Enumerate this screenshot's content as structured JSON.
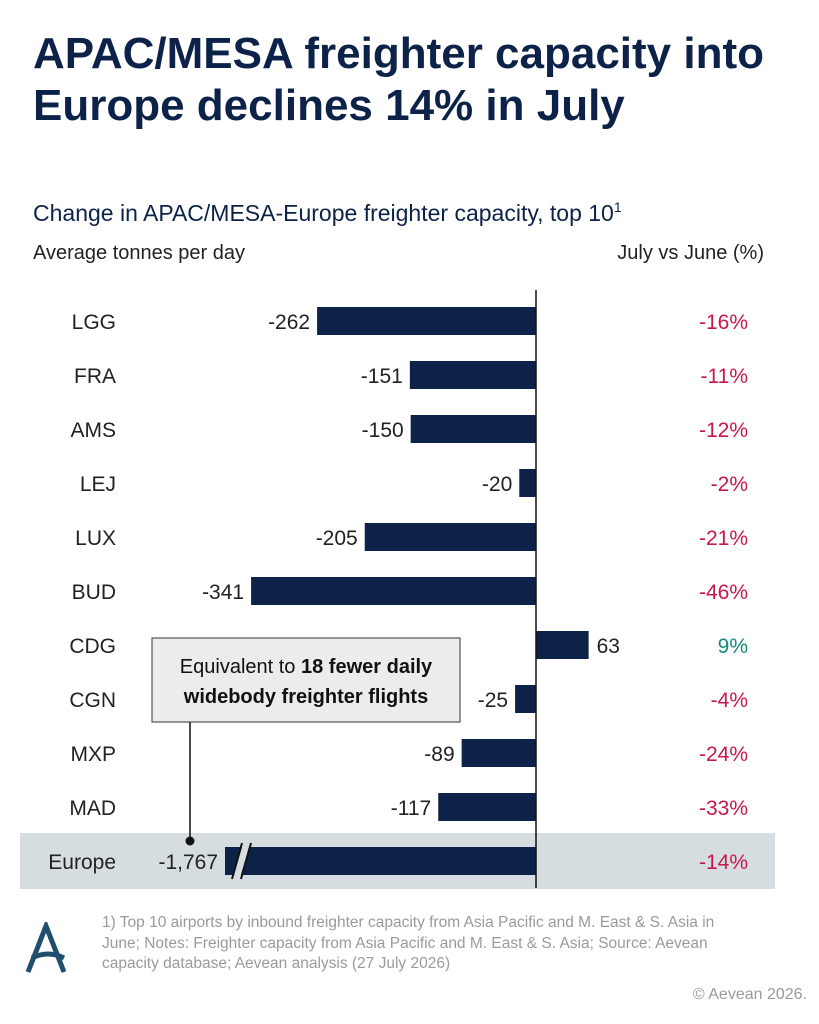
{
  "title": "APAC/MESA freighter capacity into Europe declines 14% in July",
  "subtitle": "Change in APAC/MESA-Europe freighter capacity, top 10",
  "subtitle_footnote_mark": "1",
  "left_header": "Average tonnes per day",
  "right_header": "July vs June (%)",
  "callout": {
    "line1_prefix": "Equivalent to ",
    "line1_bold": "18 fewer daily",
    "line2_bold": "widebody freighter flights"
  },
  "notes": "1) Top 10 airports by inbound freighter capacity from Asia Pacific and M. East & S. Asia in June; Notes: Freighter capacity from Asia Pacific and M. East & S. Asia; Source: Aevean capacity database; Aevean analysis (27 July 2026)",
  "copyright": "© Aevean 2026.",
  "colors": {
    "bar": "#0d2248",
    "negative": "#c8174b",
    "positive": "#138a7b",
    "highlight_band": "#d5dde0",
    "callout_bg": "#ececec"
  },
  "chart_data": {
    "type": "bar",
    "orientation": "horizontal",
    "title": "Change in APAC/MESA-Europe freighter capacity, top 10",
    "xlabel": "Average tonnes per day",
    "categories": [
      "LGG",
      "FRA",
      "AMS",
      "LEJ",
      "LUX",
      "BUD",
      "CDG",
      "CGN",
      "MXP",
      "MAD",
      "Europe"
    ],
    "values": [
      -262,
      -151,
      -150,
      -20,
      -205,
      -341,
      63,
      -25,
      -89,
      -117,
      -1767
    ],
    "value_labels": [
      "-262",
      "-151",
      "-150",
      "-20",
      "-205",
      "-341",
      "63",
      "-25",
      "-89",
      "-117",
      "-1,767"
    ],
    "pct_change": [
      "-16%",
      "-11%",
      "-12%",
      "-2%",
      "-21%",
      "-46%",
      "9%",
      "-4%",
      "-24%",
      "-33%",
      "-14%"
    ],
    "pct_header": "July vs June (%)",
    "highlighted_category": "Europe",
    "broken_axis_category": "Europe",
    "grid": false
  }
}
